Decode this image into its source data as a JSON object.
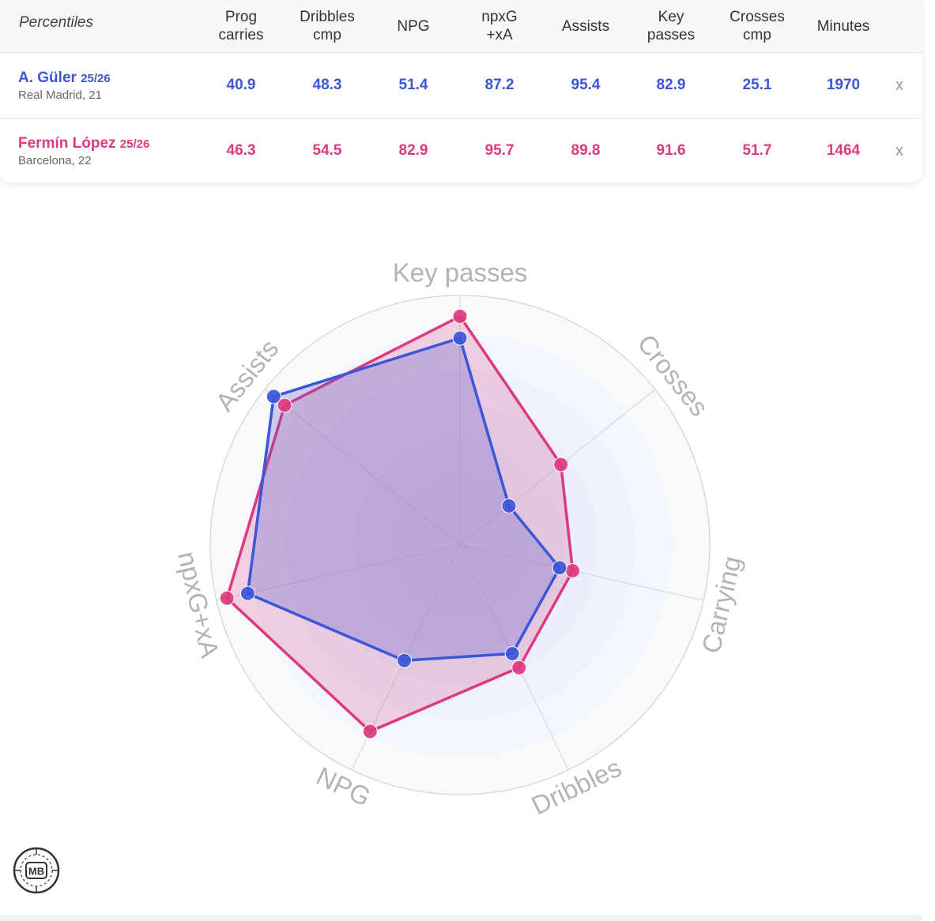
{
  "table": {
    "percentiles_label": "Percentiles",
    "columns": [
      "Prog\ncarries",
      "Dribbles\ncmp",
      "NPG",
      "npxG\n+xA",
      "Assists",
      "Key\npasses",
      "Crosses\ncmp",
      "Minutes"
    ],
    "remove_label": "x",
    "players": [
      {
        "name": "A. Güler",
        "season": "25/26",
        "team": "Real Madrid, 21",
        "values": [
          "40.9",
          "48.3",
          "51.4",
          "87.2",
          "95.4",
          "82.9",
          "25.1",
          "1970"
        ]
      },
      {
        "name": "Fermín López",
        "season": "25/26",
        "team": "Barcelona, 22",
        "values": [
          "46.3",
          "54.5",
          "82.9",
          "95.7",
          "89.8",
          "91.6",
          "51.7",
          "1464"
        ]
      }
    ]
  },
  "chart_data": {
    "type": "radar",
    "axes": [
      "Key passes",
      "Crosses",
      "Carrying",
      "Dribbles",
      "NPG",
      "npxG+xA",
      "Assists"
    ],
    "range": [
      0,
      100
    ],
    "series": [
      {
        "name": "A. Güler",
        "color": "#3c56d8",
        "values": [
          82.9,
          25.1,
          40.9,
          48.3,
          51.4,
          87.2,
          95.4
        ]
      },
      {
        "name": "Fermín López",
        "color": "#dc3a80",
        "values": [
          91.6,
          51.7,
          46.3,
          54.5,
          82.9,
          95.7,
          89.8
        ]
      }
    ]
  },
  "logo": {
    "text": "MB"
  }
}
